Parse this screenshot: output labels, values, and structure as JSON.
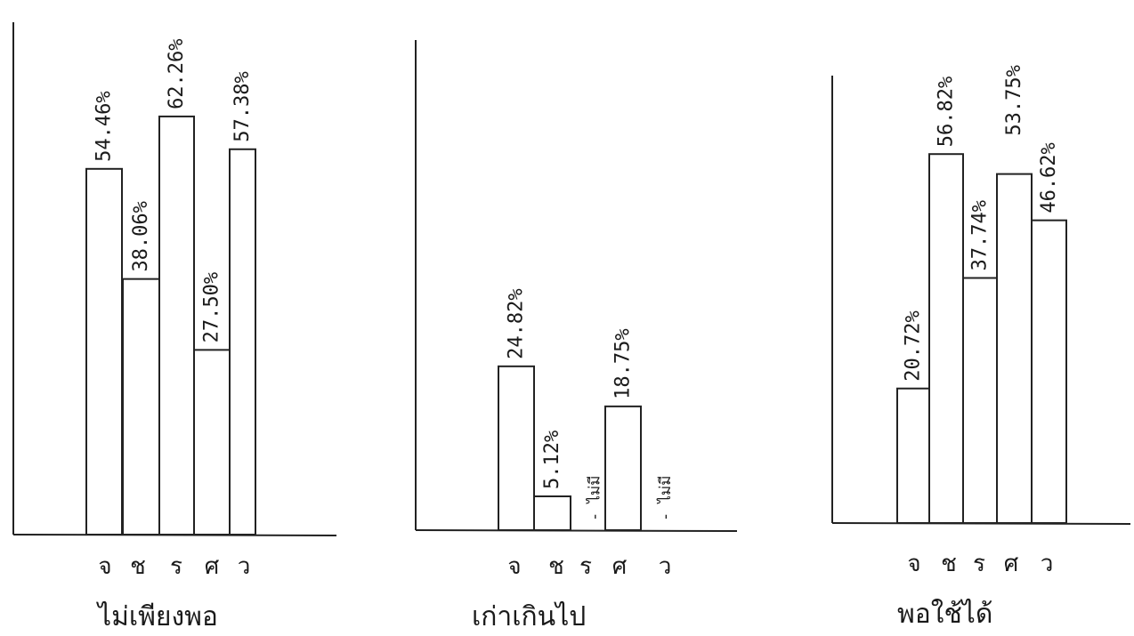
{
  "chart_data": [
    {
      "type": "bar",
      "title": "ไม่เพียงพอ",
      "categories": [
        "จ",
        "ช",
        "ร",
        "ศ",
        "ว"
      ],
      "values": [
        54.46,
        38.06,
        62.26,
        27.5,
        57.38
      ],
      "value_labels": [
        "54.46%",
        "38.06%",
        "62.26%",
        "27.50%",
        "57.38%"
      ],
      "ylim": [
        0,
        100
      ],
      "grid": false
    },
    {
      "type": "bar",
      "title": "เก่าเกินไป",
      "categories": [
        "จ",
        "ช",
        "ร",
        "ศ",
        "ว"
      ],
      "values": [
        24.82,
        5.12,
        null,
        18.75,
        null
      ],
      "value_labels": [
        "24.82%",
        "5.12%",
        "- ไม่มี",
        "18.75%",
        "- ไม่มี"
      ],
      "ylim": [
        0,
        100
      ],
      "grid": false
    },
    {
      "type": "bar",
      "title": "พอใช้ได้",
      "categories": [
        "จ",
        "ช",
        "ร",
        "ศ",
        "ว"
      ],
      "values": [
        20.72,
        56.82,
        37.74,
        53.75,
        46.62
      ],
      "value_labels": [
        "20.72%",
        "56.82%",
        "37.74%",
        "53.75%",
        "46.62%"
      ],
      "ylim": [
        0,
        100
      ],
      "grid": false
    }
  ]
}
